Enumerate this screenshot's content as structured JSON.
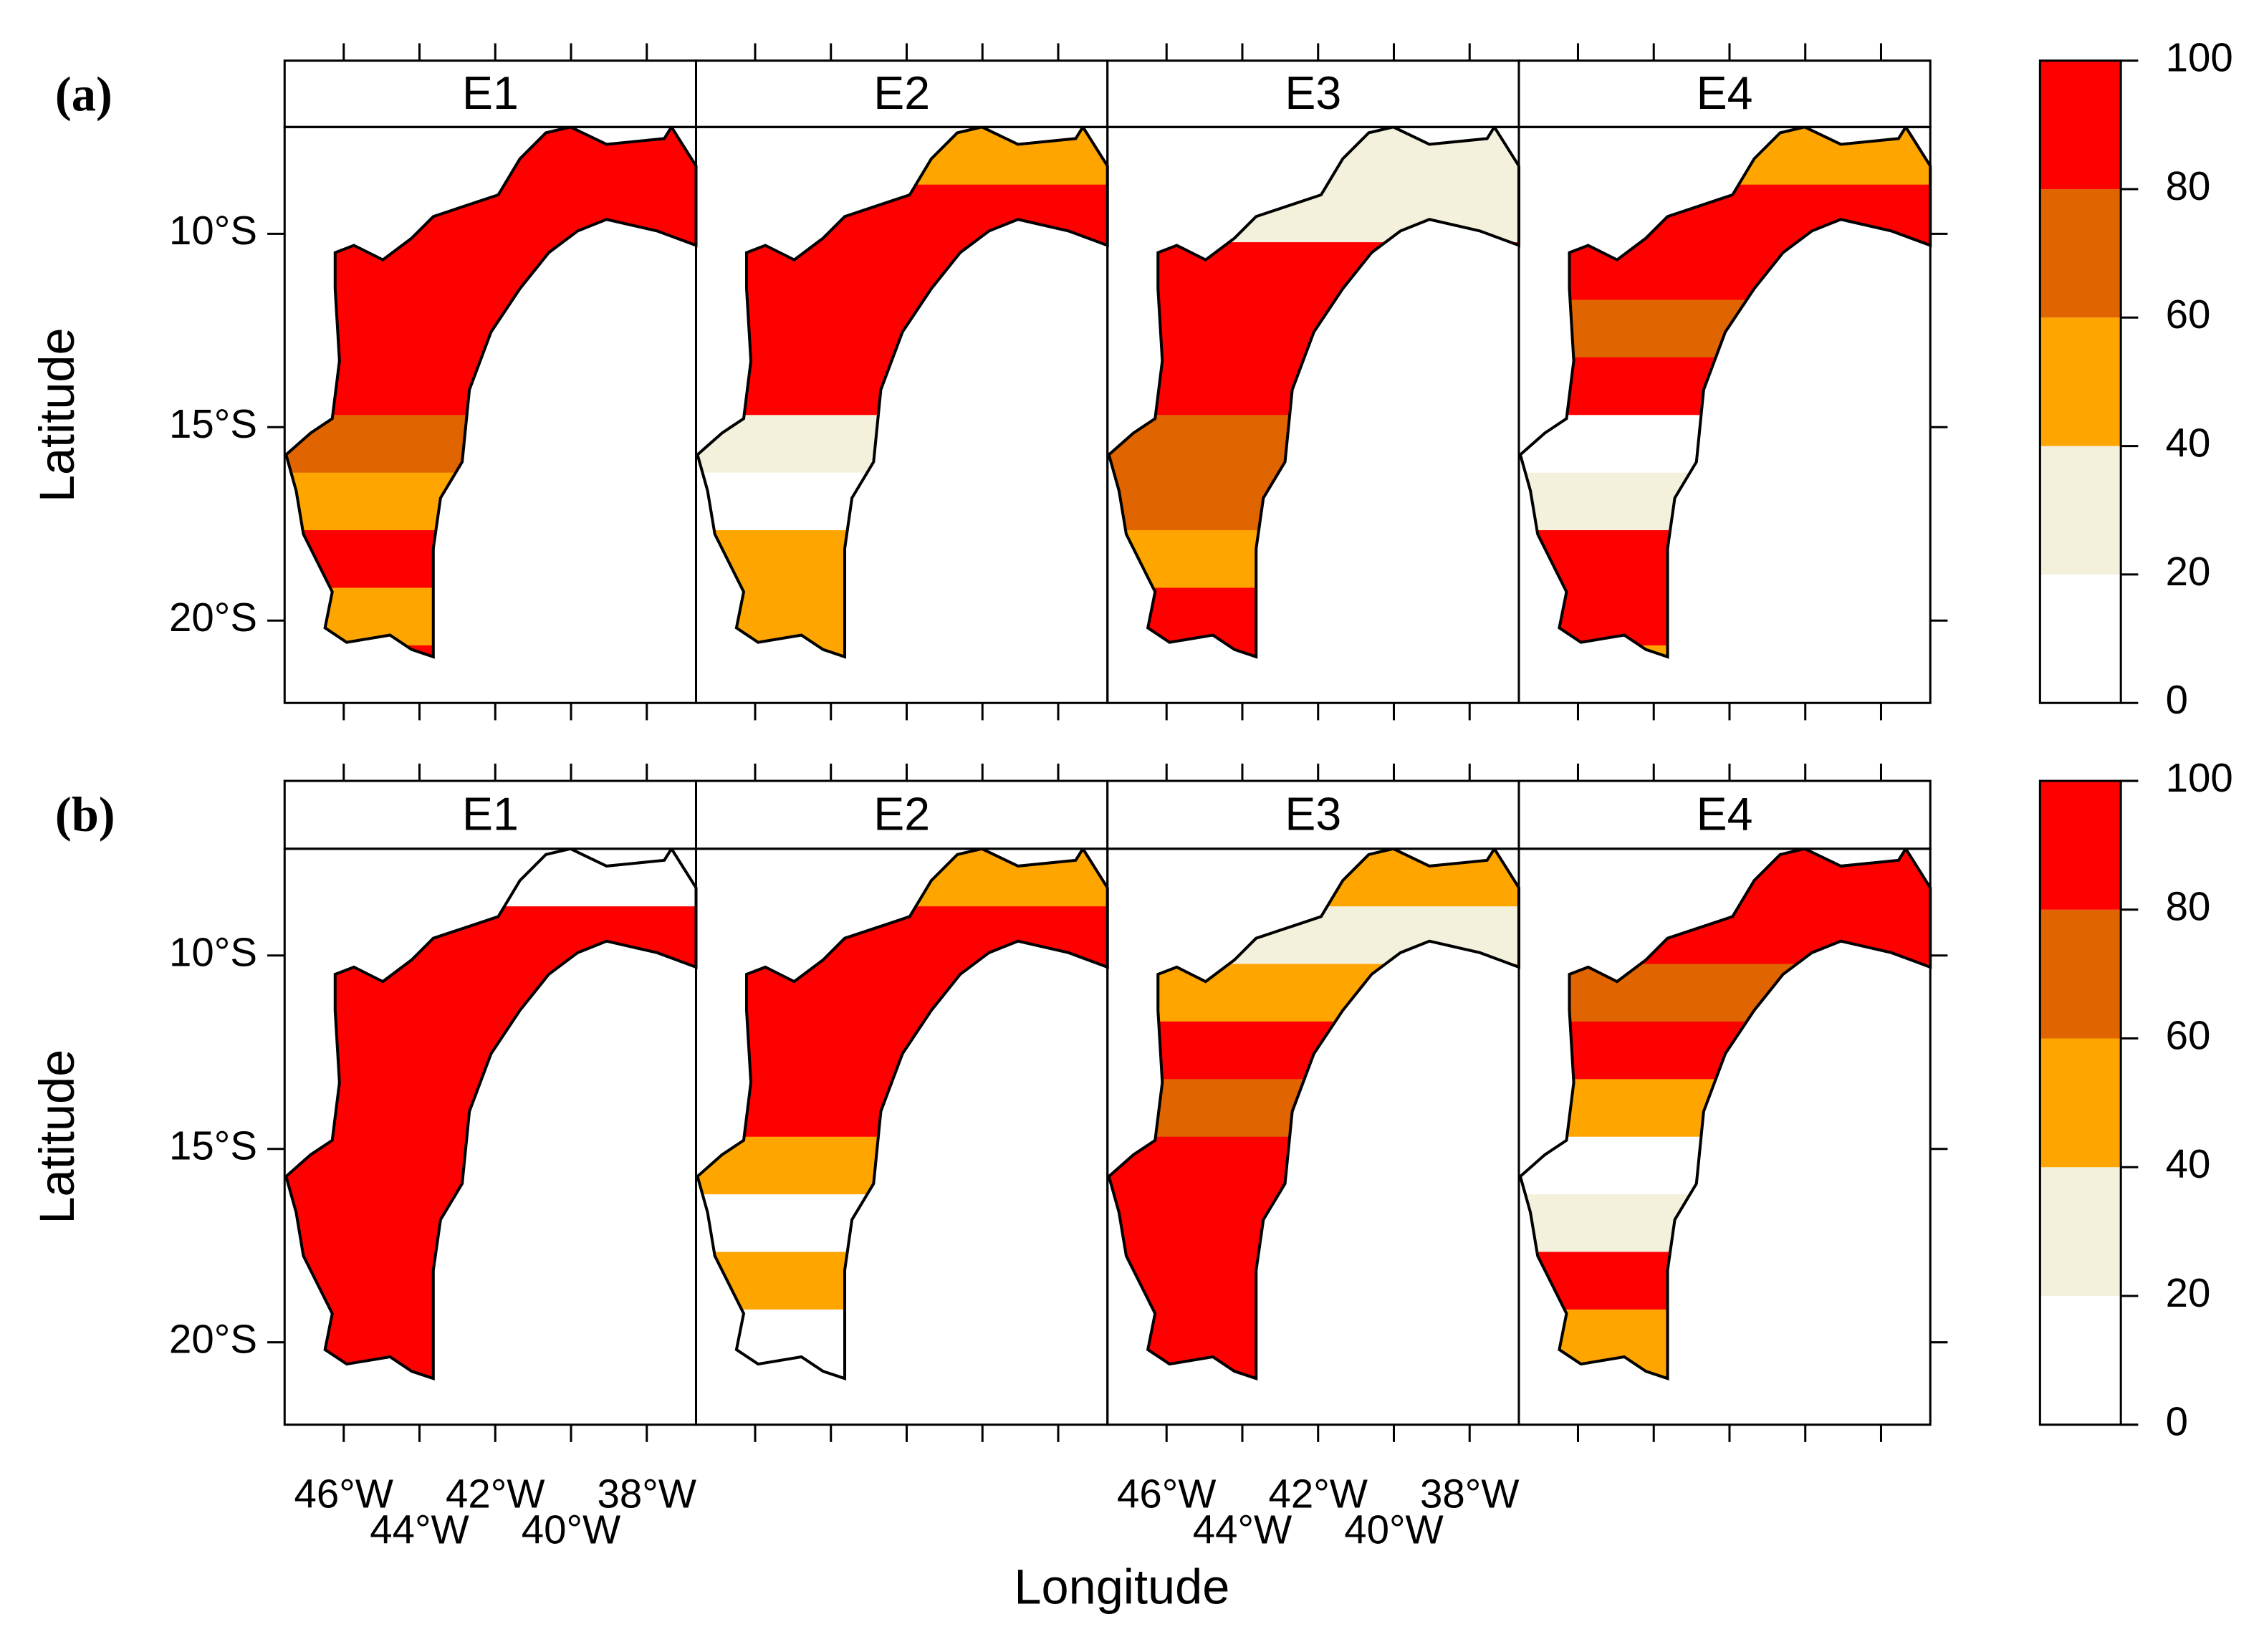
{
  "figure": {
    "rows": [
      {
        "label": "(a)",
        "panels": [
          "E1",
          "E2",
          "E3",
          "E4"
        ]
      },
      {
        "label": "(b)",
        "panels": [
          "E1",
          "E2",
          "E3",
          "E4"
        ]
      }
    ],
    "y_axis": {
      "label": "Latitude",
      "lim": [
        -22.13,
        -7.24
      ],
      "ticks": [
        {
          "value": -10,
          "label": "10°S"
        },
        {
          "value": -15,
          "label": "15°S"
        },
        {
          "value": -20,
          "label": "20°S"
        }
      ]
    },
    "x_axis": {
      "label": "Longitude",
      "lim": [
        -47.56,
        -36.7
      ],
      "ticks": [
        {
          "value": -46,
          "label": "46°W"
        },
        {
          "value": -44,
          "label": "44°W"
        },
        {
          "value": -42,
          "label": "42°W"
        },
        {
          "value": -40,
          "label": "40°W"
        },
        {
          "value": -38,
          "label": "38°W"
        }
      ]
    },
    "colorbar": {
      "lim": [
        0,
        100
      ],
      "ticks": [
        0,
        20,
        40,
        60,
        80,
        100
      ],
      "colors": [
        "#ffffff",
        "#f3f1dc",
        "#ffa500",
        "#e06400",
        "#ff0000"
      ]
    }
  }
}
